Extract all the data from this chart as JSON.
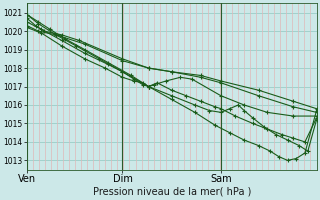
{
  "xlabel": "Pression niveau de la mer( hPa )",
  "bg_color": "#cce8e8",
  "plot_bg_color": "#cce8e8",
  "line_color": "#1a5c1a",
  "ylim": [
    1012.5,
    1021.5
  ],
  "yticks": [
    1013,
    1014,
    1015,
    1016,
    1017,
    1018,
    1019,
    1020,
    1021
  ],
  "xtick_labels": [
    "Ven",
    "Dim",
    "Sam"
  ],
  "xtick_positions": [
    0,
    0.33,
    0.67
  ],
  "xmax": 1.0,
  "vgrid_count": 48,
  "lines": [
    [
      [
        0.0,
        1020.7
      ],
      [
        0.03,
        1020.3
      ],
      [
        0.06,
        1020.0
      ],
      [
        0.12,
        1019.8
      ],
      [
        0.18,
        1019.5
      ],
      [
        0.33,
        1018.5
      ],
      [
        0.42,
        1018.0
      ],
      [
        0.5,
        1017.8
      ],
      [
        0.6,
        1017.5
      ],
      [
        0.67,
        1017.2
      ],
      [
        0.8,
        1016.5
      ],
      [
        0.92,
        1015.9
      ],
      [
        1.0,
        1015.6
      ]
    ],
    [
      [
        0.0,
        1020.3
      ],
      [
        0.04,
        1020.0
      ],
      [
        0.1,
        1019.8
      ],
      [
        0.2,
        1019.3
      ],
      [
        0.33,
        1018.4
      ],
      [
        0.42,
        1018.0
      ],
      [
        0.5,
        1017.8
      ],
      [
        0.6,
        1017.6
      ],
      [
        0.67,
        1017.3
      ],
      [
        0.8,
        1016.8
      ],
      [
        0.92,
        1016.2
      ],
      [
        1.0,
        1015.8
      ]
    ],
    [
      [
        0.0,
        1020.5
      ],
      [
        0.05,
        1020.1
      ],
      [
        0.12,
        1019.5
      ],
      [
        0.2,
        1018.8
      ],
      [
        0.28,
        1018.2
      ],
      [
        0.33,
        1017.8
      ],
      [
        0.37,
        1017.4
      ],
      [
        0.4,
        1017.1
      ],
      [
        0.42,
        1017.0
      ],
      [
        0.44,
        1017.1
      ],
      [
        0.48,
        1017.3
      ],
      [
        0.53,
        1017.5
      ],
      [
        0.57,
        1017.4
      ],
      [
        0.67,
        1016.5
      ],
      [
        0.75,
        1016.0
      ],
      [
        0.83,
        1015.6
      ],
      [
        0.92,
        1015.4
      ],
      [
        1.0,
        1015.4
      ]
    ],
    [
      [
        0.0,
        1020.2
      ],
      [
        0.05,
        1019.9
      ],
      [
        0.12,
        1019.2
      ],
      [
        0.2,
        1018.5
      ],
      [
        0.27,
        1018.0
      ],
      [
        0.33,
        1017.5
      ],
      [
        0.37,
        1017.3
      ],
      [
        0.4,
        1017.2
      ],
      [
        0.42,
        1017.0
      ],
      [
        0.45,
        1017.2
      ],
      [
        0.5,
        1016.8
      ],
      [
        0.55,
        1016.5
      ],
      [
        0.6,
        1016.2
      ],
      [
        0.65,
        1015.9
      ],
      [
        0.67,
        1015.8
      ],
      [
        0.72,
        1015.4
      ],
      [
        0.78,
        1015.0
      ],
      [
        0.83,
        1014.7
      ],
      [
        0.88,
        1014.4
      ],
      [
        0.92,
        1014.2
      ],
      [
        0.96,
        1014.0
      ],
      [
        1.0,
        1015.3
      ]
    ],
    [
      [
        0.0,
        1020.9
      ],
      [
        0.04,
        1020.5
      ],
      [
        0.08,
        1020.1
      ],
      [
        0.13,
        1019.6
      ],
      [
        0.2,
        1019.0
      ],
      [
        0.28,
        1018.3
      ],
      [
        0.36,
        1017.6
      ],
      [
        0.42,
        1017.0
      ],
      [
        0.5,
        1016.5
      ],
      [
        0.58,
        1016.0
      ],
      [
        0.63,
        1015.7
      ],
      [
        0.67,
        1015.6
      ],
      [
        0.7,
        1015.8
      ],
      [
        0.73,
        1016.0
      ],
      [
        0.75,
        1015.7
      ],
      [
        0.78,
        1015.3
      ],
      [
        0.82,
        1014.8
      ],
      [
        0.86,
        1014.4
      ],
      [
        0.9,
        1014.1
      ],
      [
        0.94,
        1013.8
      ],
      [
        0.97,
        1013.5
      ],
      [
        1.0,
        1015.2
      ]
    ],
    [
      [
        0.0,
        1020.9
      ],
      [
        0.04,
        1020.4
      ],
      [
        0.1,
        1019.8
      ],
      [
        0.17,
        1019.2
      ],
      [
        0.25,
        1018.5
      ],
      [
        0.33,
        1017.8
      ],
      [
        0.42,
        1017.0
      ],
      [
        0.5,
        1016.3
      ],
      [
        0.58,
        1015.6
      ],
      [
        0.65,
        1014.9
      ],
      [
        0.7,
        1014.5
      ],
      [
        0.75,
        1014.1
      ],
      [
        0.8,
        1013.8
      ],
      [
        0.84,
        1013.5
      ],
      [
        0.87,
        1013.2
      ],
      [
        0.9,
        1013.0
      ],
      [
        0.93,
        1013.1
      ],
      [
        0.96,
        1013.4
      ],
      [
        1.0,
        1015.7
      ]
    ]
  ]
}
